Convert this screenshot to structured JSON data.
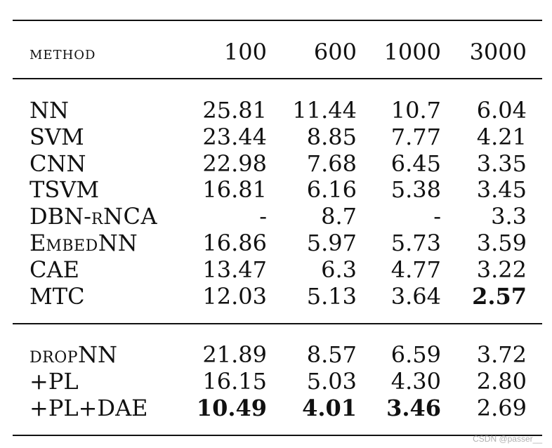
{
  "header": {
    "method": "method",
    "col_100": "100",
    "col_600": "600",
    "col_1000": "1000",
    "col_3000": "3000"
  },
  "group1": [
    {
      "method": "NN",
      "v100": "25.81",
      "v600": "11.44",
      "v1000": "10.7",
      "v3000": "6.04"
    },
    {
      "method": "SVM",
      "v100": "23.44",
      "v600": "8.85",
      "v1000": "7.77",
      "v3000": "4.21"
    },
    {
      "method": "CNN",
      "v100": "22.98",
      "v600": "7.68",
      "v1000": "6.45",
      "v3000": "3.35"
    },
    {
      "method": "TSVM",
      "v100": "16.81",
      "v600": "6.16",
      "v1000": "5.38",
      "v3000": "3.45"
    },
    {
      "method_a": "DBN-",
      "method_b": "rNCA",
      "v100": "-",
      "v600": "8.7",
      "v1000": "-",
      "v3000": "3.3"
    },
    {
      "method_a": "E",
      "method_b": "mbed",
      "method_c": "NN",
      "v100": "16.86",
      "v600": "5.97",
      "v1000": "5.73",
      "v3000": "3.59"
    },
    {
      "method": "CAE",
      "v100": "13.47",
      "v600": "6.3",
      "v1000": "4.77",
      "v3000": "3.22"
    },
    {
      "method": "MTC",
      "v100": "12.03",
      "v600": "5.13",
      "v1000": "3.64",
      "v3000": "2.57"
    }
  ],
  "group2": [
    {
      "method_a": "drop",
      "method_b": "NN",
      "v100": "21.89",
      "v600": "8.57",
      "v1000": "6.59",
      "v3000": "3.72"
    },
    {
      "method": "+PL",
      "v100": "16.15",
      "v600": "5.03",
      "v1000": "4.30",
      "v3000": "2.80"
    },
    {
      "method": "+PL+DAE",
      "v100": "10.49",
      "v600": "4.01",
      "v1000": "3.46",
      "v3000": "2.69"
    }
  ],
  "watermark": "CSDN @passer__"
}
